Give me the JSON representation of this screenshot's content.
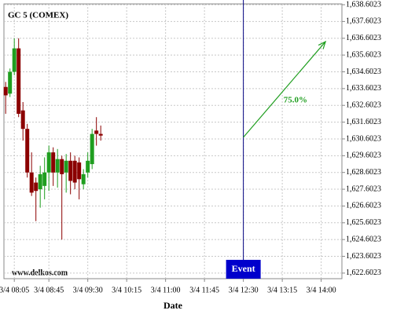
{
  "chart_data": {
    "type": "candlestick",
    "title": "GC 5 (COMEX)",
    "watermark": "www.delkos.com",
    "x_label": "Date",
    "x": [
      "3/4 07:55",
      "3/4 08:00",
      "3/4 08:05",
      "3/4 08:10",
      "3/4 08:15",
      "3/4 08:20",
      "3/4 08:25",
      "3/4 08:30",
      "3/4 08:35",
      "3/4 08:40",
      "3/4 08:45",
      "3/4 08:50",
      "3/4 08:55",
      "3/4 09:00",
      "3/4 09:05",
      "3/4 09:10",
      "3/4 09:15",
      "3/4 09:20",
      "3/4 09:25",
      "3/4 09:30",
      "3/4 09:35",
      "3/4 09:40",
      "3/4 09:45"
    ],
    "open": [
      1633.7,
      1633.3,
      1634.6,
      1636.0,
      1632.3,
      1631.2,
      1628.6,
      1628.0,
      1627.6,
      1627.8,
      1628.6,
      1629.8,
      1628.6,
      1629.4,
      1628.6,
      1629.3,
      1629.3,
      1629.2,
      1627.9,
      1628.6,
      1629.1,
      1631.1,
      1630.9
    ],
    "high": [
      1634.0,
      1634.8,
      1636.6,
      1636.6,
      1632.8,
      1631.5,
      1629.8,
      1628.3,
      1629.0,
      1629.5,
      1630.2,
      1630.1,
      1630.0,
      1629.6,
      1629.7,
      1629.8,
      1629.6,
      1629.5,
      1628.8,
      1629.8,
      1631.2,
      1631.9,
      1631.4
    ],
    "low": [
      1632.1,
      1633.1,
      1634.4,
      1631.9,
      1630.5,
      1628.3,
      1627.2,
      1625.7,
      1626.5,
      1627.0,
      1627.5,
      1627.8,
      1627.7,
      1624.6,
      1627.4,
      1627.3,
      1627.6,
      1627.0,
      1627.6,
      1628.3,
      1628.8,
      1630.2,
      1630.5
    ],
    "close": [
      1633.2,
      1634.6,
      1636.0,
      1632.1,
      1631.2,
      1628.6,
      1627.4,
      1627.5,
      1628.5,
      1628.6,
      1629.8,
      1628.6,
      1629.4,
      1628.5,
      1629.3,
      1628.1,
      1628.0,
      1628.2,
      1628.5,
      1629.3,
      1630.9,
      1630.9,
      1630.8
    ],
    "up_color": "#1f9e1f",
    "down_color": "#8b0000",
    "xlim": [
      "3/4 07:53",
      "3/4 14:24"
    ],
    "xticks": [
      "3/4 08:05",
      "3/4 08:45",
      "3/4 09:30",
      "3/4 10:15",
      "3/4 11:00",
      "3/4 11:45",
      "3/4 12:30",
      "3/4 13:15",
      "3/4 14:00"
    ],
    "ylim": [
      1622.27,
      1638.65
    ],
    "yticks": [
      {
        "value": 1622.6023,
        "label": "1,622.6023"
      },
      {
        "value": 1623.6023,
        "label": "1,623.6023"
      },
      {
        "value": 1624.6023,
        "label": "1,624.6023"
      },
      {
        "value": 1625.6023,
        "label": "1,625.6023"
      },
      {
        "value": 1626.6023,
        "label": "1,626.6023"
      },
      {
        "value": 1627.6023,
        "label": "1,627.6023"
      },
      {
        "value": 1628.6023,
        "label": "1,628.6023"
      },
      {
        "value": 1629.6023,
        "label": "1,629.6023"
      },
      {
        "value": 1630.6023,
        "label": "1,630.6023"
      },
      {
        "value": 1631.6023,
        "label": "1,631.6023"
      },
      {
        "value": 1632.6023,
        "label": "1,632.6023"
      },
      {
        "value": 1633.6023,
        "label": "1,633.6023"
      },
      {
        "value": 1634.6023,
        "label": "1,634.6023"
      },
      {
        "value": 1635.6023,
        "label": "1,635.6023"
      },
      {
        "value": 1636.6023,
        "label": "1,636.6023"
      },
      {
        "value": 1637.6023,
        "label": "1,637.6023"
      },
      {
        "value": 1638.6023,
        "label": "1,638.6023"
      }
    ],
    "grid": true,
    "event": {
      "label": "Event",
      "x": "3/4 12:30",
      "color": "#0000cc"
    },
    "arrow": {
      "label": "75.0%",
      "x0": "3/4 12:30",
      "y0": 1630.7,
      "x1": "3/4 14:05",
      "y1": 1636.4,
      "color": "#1f9e1f"
    }
  }
}
